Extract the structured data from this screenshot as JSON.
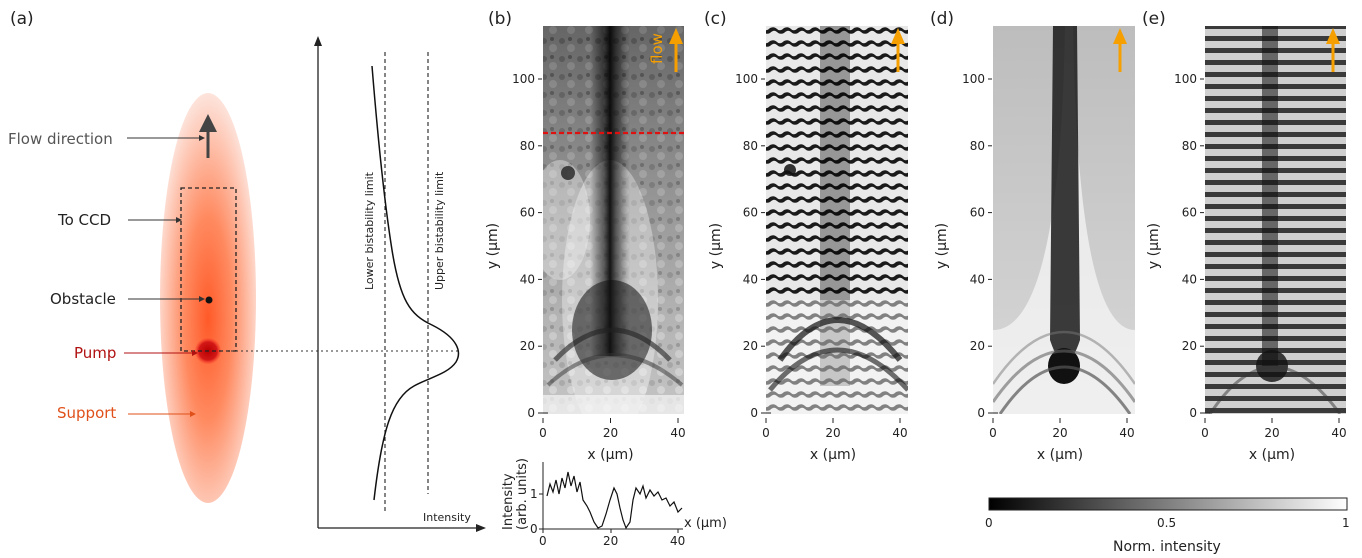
{
  "panel_labels": [
    "(a)",
    "(b)",
    "(c)",
    "(d)",
    "(e)"
  ],
  "schematic": {
    "labels": {
      "flow_direction": "Flow direction",
      "to_ccd": "To CCD",
      "obstacle": "Obstacle",
      "pump": "Pump",
      "support": "Support"
    },
    "label_colors": {
      "flow_direction": "#555555",
      "to_ccd": "#222222",
      "obstacle": "#222222",
      "pump": "#b01010",
      "support": "#e0501a"
    },
    "bistability": {
      "lower_label": "Lower bistability limit",
      "upper_label": "Upper bistability limit",
      "x_axis_label": "Intensity"
    }
  },
  "image_panels": {
    "x_axis_label": "x (µm)",
    "y_axis_label": "y (µm)",
    "x_ticks": [
      "0",
      "20",
      "40"
    ],
    "y_ticks": [
      "0",
      "20",
      "40",
      "60",
      "80",
      "100"
    ],
    "flow_text": "flow",
    "arrow_color": "#f5a000",
    "cut_line_color": "#e01010"
  },
  "profile": {
    "ylabel_line1": "Intensity",
    "ylabel_line2": "(arb. units)",
    "xlabel": "x (µm)",
    "y_ticks": [
      "0",
      "1"
    ],
    "x_ticks": [
      "0",
      "20",
      "40"
    ]
  },
  "colorbar": {
    "label": "Norm. intensity",
    "ticks": [
      "0",
      "0.5",
      "1"
    ]
  }
}
